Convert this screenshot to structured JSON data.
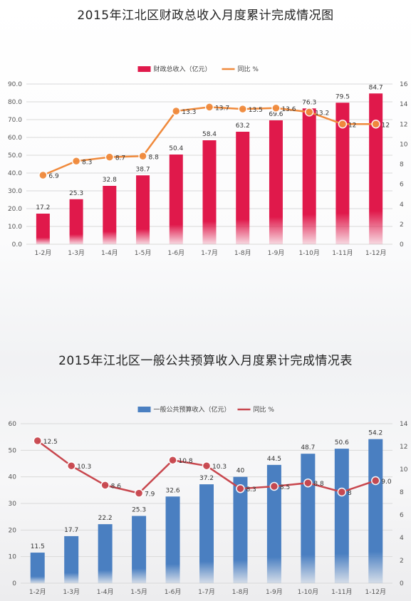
{
  "chart_data": [
    {
      "type": "bar",
      "title": "2015年江北区财政总收入月度累计完成情况图",
      "categories": [
        "1-2月",
        "1-3月",
        "1-4月",
        "1-5月",
        "1-6月",
        "1-7月",
        "1-8月",
        "1-9月",
        "1-10月",
        "1-11月",
        "1-12月"
      ],
      "series": [
        {
          "name": "财政总收入（亿元）",
          "type": "bar",
          "axis": "left",
          "color": "#e0194b",
          "values": [
            17.2,
            25.3,
            32.8,
            38.7,
            50.4,
            58.4,
            63.2,
            69.6,
            76.3,
            79.5,
            84.7
          ],
          "labels": [
            "17.2",
            "25.3",
            "32.8",
            "38.7",
            "50.4",
            "58.4",
            "63.2",
            "69.6",
            "76.3",
            "79.5",
            "84.7"
          ]
        },
        {
          "name": "同比  %",
          "type": "line",
          "axis": "right",
          "color": "#f08a3c",
          "values": [
            6.9,
            8.3,
            8.7,
            8.8,
            13.3,
            13.7,
            13.5,
            13.6,
            13.2,
            12,
            12
          ],
          "labels": [
            "6.9",
            "8.3",
            "8.7",
            "8.8",
            "13.3",
            "13.7",
            "13.5",
            "13.6",
            "13.2",
            "12",
            "12"
          ]
        }
      ],
      "ylim": [
        0,
        90
      ],
      "y_ticks": [
        "0.0",
        "10.0",
        "20.0",
        "30.0",
        "40.0",
        "50.0",
        "60.0",
        "70.0",
        "80.0",
        "90.0"
      ],
      "y2lim": [
        0,
        16
      ],
      "y2_ticks": [
        "0",
        "2",
        "4",
        "6",
        "8",
        "10",
        "12",
        "14",
        "16"
      ],
      "grid": true,
      "legend_position": "top-center"
    },
    {
      "type": "bar",
      "title": "2015年江北区一般公共预算收入月度累计完成情况表",
      "categories": [
        "1-2月",
        "1-3月",
        "1-4月",
        "1-5月",
        "1-6月",
        "1-7月",
        "1-8月",
        "1-9月",
        "1-10月",
        "1-11月",
        "1-12月"
      ],
      "series": [
        {
          "name": "一般公共预算收入（亿元）",
          "type": "bar",
          "axis": "left",
          "color": "#4a7fc1",
          "values": [
            11.5,
            17.7,
            22.2,
            25.3,
            32.6,
            37.2,
            40,
            44.5,
            48.7,
            50.6,
            54.2
          ],
          "labels": [
            "11.5",
            "17.7",
            "22.2",
            "25.3",
            "32.6",
            "37.2",
            "40",
            "44.5",
            "48.7",
            "50.6",
            "54.2"
          ]
        },
        {
          "name": "同比  %",
          "type": "line",
          "axis": "right",
          "color": "#c8474e",
          "values": [
            12.5,
            10.3,
            8.6,
            7.9,
            10.8,
            10.3,
            8.3,
            8.5,
            8.8,
            8,
            9.0
          ],
          "labels": [
            "12.5",
            "10.3",
            "8.6",
            "7.9",
            "10.8",
            "10.3",
            "8.3",
            "8.5",
            "8.8",
            "8",
            "9.0"
          ]
        }
      ],
      "ylim": [
        0,
        60
      ],
      "y_ticks": [
        "0",
        "10",
        "20",
        "30",
        "40",
        "50",
        "60"
      ],
      "y2lim": [
        0,
        14
      ],
      "y2_ticks": [
        "0",
        "2",
        "4",
        "6",
        "8",
        "10",
        "12",
        "14"
      ],
      "grid": true,
      "legend_position": "top-center"
    }
  ]
}
